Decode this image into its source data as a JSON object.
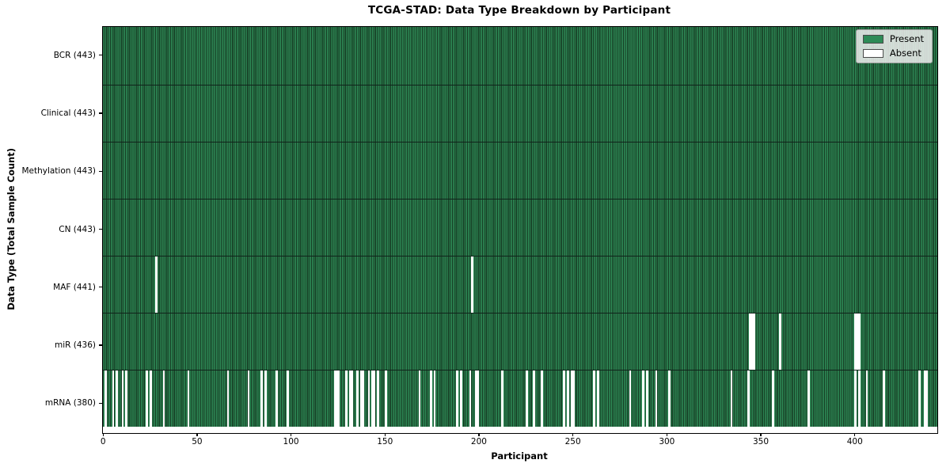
{
  "title": "TCGA-STAD: Data Type Breakdown by Participant",
  "colors": {
    "present": "#2E8B57",
    "present_edge": "#153a22",
    "absent": "#ffffff",
    "axis": "#000000",
    "legend_bg": "#f0f0f0",
    "legend_border": "#9e9e9e"
  },
  "chart_data": {
    "type": "heatmap",
    "title": "TCGA-STAD: Data Type Breakdown by Participant",
    "xlabel": "Participant",
    "ylabel": "Data Type (Total Sample Count)",
    "x_range": [
      -0.5,
      443.5
    ],
    "n_participants": 443,
    "xticks": [
      0,
      50,
      100,
      150,
      200,
      250,
      300,
      350,
      400
    ],
    "grid": false,
    "legend_position": "upper right",
    "legend": [
      {
        "label": "Present",
        "color": "#2E8B57"
      },
      {
        "label": "Absent",
        "color": "#ffffff"
      }
    ],
    "rows": [
      {
        "label": "BCR (443)",
        "data_type": "BCR",
        "present_count": 443,
        "absent_participants": []
      },
      {
        "label": "Clinical (443)",
        "data_type": "Clinical",
        "present_count": 443,
        "absent_participants": []
      },
      {
        "label": "Methylation (443)",
        "data_type": "Methylation",
        "present_count": 443,
        "absent_participants": []
      },
      {
        "label": "CN (443)",
        "data_type": "CN",
        "present_count": 443,
        "absent_participants": []
      },
      {
        "label": "MAF (441)",
        "data_type": "MAF",
        "present_count": 441,
        "absent_participants": [
          28,
          196
        ]
      },
      {
        "label": "miR (436)",
        "data_type": "miR",
        "present_count": 436,
        "absent_participants": [
          344,
          345,
          346,
          360,
          400,
          401,
          402
        ]
      },
      {
        "label": "mRNA (380)",
        "data_type": "mRNA",
        "present_count": 380,
        "absent_participants": [
          1,
          5,
          7,
          10,
          12,
          23,
          25,
          32,
          45,
          66,
          77,
          84,
          86,
          92,
          98,
          123,
          124,
          125,
          129,
          131,
          132,
          135,
          137,
          138,
          141,
          143,
          144,
          146,
          150,
          168,
          174,
          176,
          188,
          190,
          195,
          198,
          199,
          212,
          225,
          229,
          233,
          245,
          247,
          249,
          250,
          261,
          263,
          280,
          287,
          289,
          294,
          301,
          334,
          343,
          356,
          375,
          400,
          402,
          406,
          415,
          434,
          437,
          438
        ]
      }
    ]
  }
}
